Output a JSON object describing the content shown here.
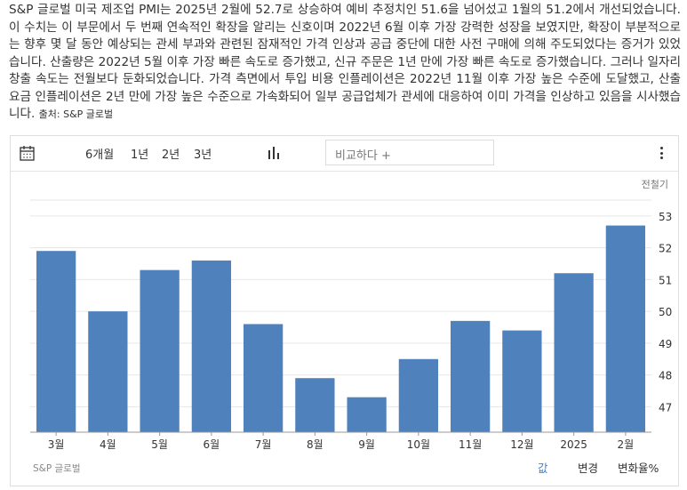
{
  "description": {
    "text": "S&P 글로벌 미국 제조업 PMI는 2025년 2월에 52.7로 상승하여 예비 추정치인 51.6을 넘어섰고 1월의 51.2에서 개선되었습니다. 이 수치는 이 부문에서 두 번째 연속적인 확장을 알리는 신호이며 2022년 6월 이후 가장 강력한 성장을 보였지만, 확장이 부분적으로는 향후 몇 달 동안 예상되는 관세 부과와 관련된 잠재적인 가격 인상과 공급 중단에 대한 사전 구매에 의해 주도되었다는 증거가 있었습니다. 산출량은 2022년 5월 이후 가장 빠른 속도로 증가했고, 신규 주문은 1년 만에 가장 빠른 속도로 증가했습니다. 그러나 일자리 창출 속도는 전월보다 둔화되었습니다. 가격 측면에서 투입 비용 인플레이션은 2022년 11월 이후 가장 높은 수준에 도달했고, 산출 요금 인플레이션은 2년 만에 가장 높은 수준으로 가속화되어 일부 공급업체가 관세에 대응하여 이미 가격을 인상하고 있음을 시사했습니다.",
    "source": "출처: S&P 글로벌"
  },
  "toolbar": {
    "ranges": [
      "6개월",
      "1년",
      "2년",
      "3년"
    ],
    "compare_placeholder": "비교하다 +"
  },
  "corner_label": "전철기",
  "footer": {
    "source": "S&P 글로벌",
    "tabs": [
      "값",
      "변경",
      "변화율%"
    ],
    "active_tab": 0
  },
  "colors": {
    "bar": "#4f81bd",
    "accent": "#3b82d6",
    "grid": "#e6e6e6"
  },
  "chart_data": {
    "type": "bar",
    "categories": [
      "3월",
      "4월",
      "5월",
      "6월",
      "7월",
      "8월",
      "9월",
      "10월",
      "11월",
      "12월",
      "2025",
      "2월"
    ],
    "values": [
      51.9,
      50.0,
      51.3,
      51.6,
      49.6,
      47.9,
      47.3,
      48.5,
      49.7,
      49.4,
      51.2,
      52.7
    ],
    "y_ticks": [
      47,
      48,
      49,
      50,
      51,
      52,
      53
    ],
    "ylim": [
      46.2,
      53.5
    ],
    "grid": true,
    "y_axis_position": "right"
  }
}
